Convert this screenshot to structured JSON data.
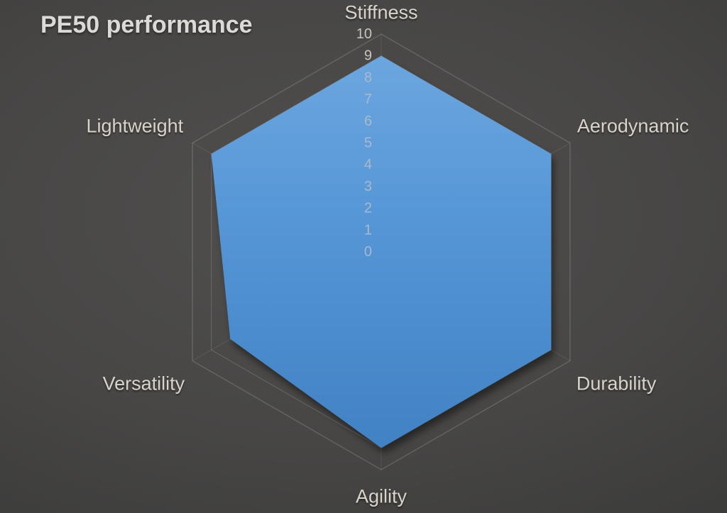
{
  "title": "PE50 performance",
  "chart_data": {
    "type": "radar",
    "title": "PE50 performance",
    "categories": [
      "Stiffness",
      "Aerodynamic",
      "Durability",
      "Agility",
      "Versatility",
      "Lightweight"
    ],
    "series": [
      {
        "name": "PE50",
        "values": [
          9,
          9,
          9,
          9,
          8,
          9
        ]
      }
    ],
    "axis": {
      "min": 0,
      "max": 10,
      "tick_interval": 1,
      "tick_labels": [
        "10",
        "9",
        "8",
        "7",
        "6",
        "5",
        "4",
        "3",
        "2",
        "1",
        "0"
      ]
    },
    "grid": true,
    "legend": "none",
    "colors": {
      "fill_top": "#6ca6df",
      "fill_mid": "#5495d6",
      "fill_bottom": "#4182c4",
      "grid_line_outer": "rgba(255,255,255,0.14)",
      "grid_line_inner": "rgba(255,255,255,0.08)",
      "tick_text_dark_bg": "#c9c4bd",
      "tick_text_on_fill": "#a9b9cc",
      "axis_label_text": "#d9d3cb",
      "title_text": "#dcdad7",
      "background_center": "#4e4d4c",
      "background_edge": "#333332"
    }
  }
}
